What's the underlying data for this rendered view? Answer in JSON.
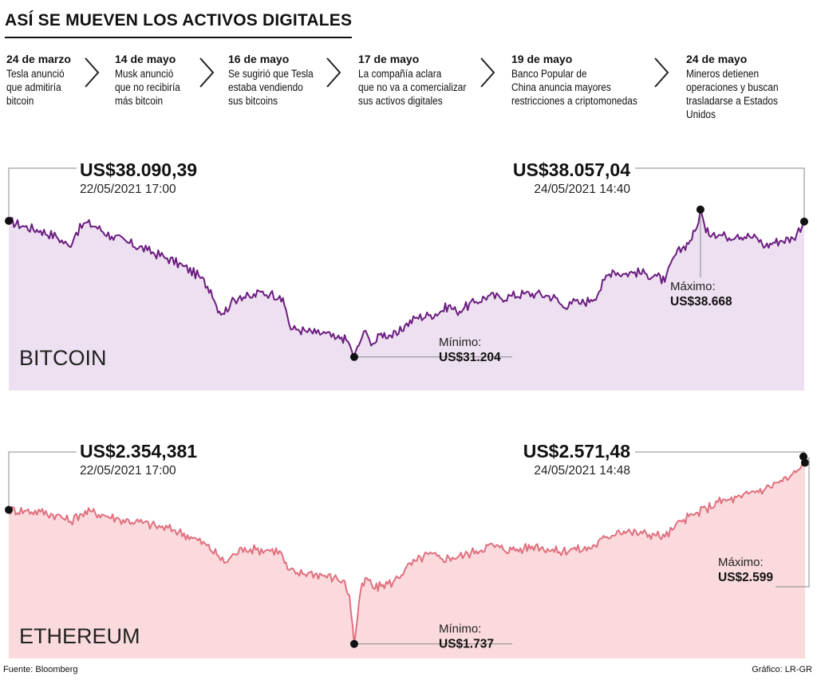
{
  "title": "ASÍ SE MUEVEN LOS ACTIVOS DIGITALES",
  "timeline": [
    {
      "date": "24 de marzo",
      "text": "Tesla anunció\nque admitiría\nbitcoin"
    },
    {
      "date": "14 de mayo",
      "text": "Musk anunció\nque no recibiría\nmás bitcoin"
    },
    {
      "date": "16 de mayo",
      "text": "Se sugirió que Tesla\nestaba vendiendo\nsus bitcoins"
    },
    {
      "date": "17 de mayo",
      "text": "La compañía aclara\nque no va a comercializar\nsus activos digitales"
    },
    {
      "date": "19 de mayo",
      "text": "Banco Popular de\nChina anuncia mayores\nrestricciones a criptomonedas"
    },
    {
      "date": "24 de mayo",
      "text": "Mineros detienen\noperaciones y buscan\ntrasladarse a Estados Unidos"
    }
  ],
  "chart_data": [
    {
      "type": "area",
      "name": "BITCOIN",
      "color": "#6b1d80",
      "fill": "#ede0f0",
      "ylim": [
        29500,
        40800
      ],
      "anchors": [
        [
          0,
          38090
        ],
        [
          20,
          37800
        ],
        [
          40,
          37600
        ],
        [
          60,
          37300
        ],
        [
          76,
          36800
        ],
        [
          85,
          37500
        ],
        [
          97,
          38000
        ],
        [
          110,
          37800
        ],
        [
          130,
          37300
        ],
        [
          150,
          37000
        ],
        [
          175,
          36600
        ],
        [
          200,
          36200
        ],
        [
          220,
          35800
        ],
        [
          240,
          35300
        ],
        [
          255,
          34600
        ],
        [
          262,
          33800
        ],
        [
          270,
          33400
        ],
        [
          280,
          33900
        ],
        [
          292,
          34300
        ],
        [
          305,
          34200
        ],
        [
          318,
          34500
        ],
        [
          330,
          34400
        ],
        [
          342,
          34300
        ],
        [
          350,
          33600
        ],
        [
          356,
          32600
        ],
        [
          365,
          32600
        ],
        [
          375,
          32500
        ],
        [
          388,
          32400
        ],
        [
          400,
          32400
        ],
        [
          412,
          32100
        ],
        [
          420,
          32200
        ],
        [
          428,
          32000
        ],
        [
          433,
          31500
        ],
        [
          436,
          31204
        ],
        [
          442,
          31800
        ],
        [
          448,
          32500
        ],
        [
          455,
          32100
        ],
        [
          462,
          31900
        ],
        [
          470,
          32400
        ],
        [
          480,
          32300
        ],
        [
          490,
          32300
        ],
        [
          500,
          32800
        ],
        [
          515,
          33200
        ],
        [
          530,
          33300
        ],
        [
          545,
          33500
        ],
        [
          555,
          33800
        ],
        [
          565,
          33500
        ],
        [
          575,
          33700
        ],
        [
          590,
          34000
        ],
        [
          605,
          34300
        ],
        [
          620,
          34200
        ],
        [
          635,
          34300
        ],
        [
          650,
          34400
        ],
        [
          665,
          34400
        ],
        [
          680,
          34300
        ],
        [
          690,
          34200
        ],
        [
          700,
          33700
        ],
        [
          708,
          34000
        ],
        [
          720,
          33900
        ],
        [
          735,
          34100
        ],
        [
          745,
          34500
        ],
        [
          752,
          35100
        ],
        [
          762,
          35600
        ],
        [
          775,
          35400
        ],
        [
          790,
          35500
        ],
        [
          805,
          35400
        ],
        [
          818,
          35300
        ],
        [
          828,
          35000
        ],
        [
          840,
          36300
        ],
        [
          850,
          36700
        ],
        [
          860,
          37100
        ],
        [
          868,
          37700
        ],
        [
          873,
          38668
        ],
        [
          880,
          37500
        ],
        [
          890,
          37500
        ],
        [
          905,
          37300
        ],
        [
          920,
          37400
        ],
        [
          935,
          37300
        ],
        [
          945,
          37200
        ],
        [
          955,
          36800
        ],
        [
          965,
          37000
        ],
        [
          975,
          37100
        ],
        [
          990,
          37200
        ],
        [
          1004,
          38057
        ]
      ],
      "value_labels": [
        {
          "value": "US$38.090,39",
          "time": "22/05/2021 17:00"
        },
        {
          "value": "US$38.057,04",
          "time": "24/05/2021 14:40"
        }
      ],
      "min": {
        "label": "Mínimo:",
        "value": "US$31.204",
        "y": 31204
      },
      "max": {
        "label": "Máximo:",
        "value": "US$38.668",
        "y": 38668
      }
    },
    {
      "type": "area",
      "name": "ETHEREUM",
      "color": "#e0707e",
      "fill": "#fadadd",
      "ylim": [
        1670,
        2690
      ],
      "anchors": [
        [
          0,
          2354
        ],
        [
          20,
          2350
        ],
        [
          40,
          2345
        ],
        [
          60,
          2330
        ],
        [
          78,
          2300
        ],
        [
          90,
          2335
        ],
        [
          105,
          2345
        ],
        [
          120,
          2330
        ],
        [
          140,
          2310
        ],
        [
          160,
          2300
        ],
        [
          185,
          2280
        ],
        [
          210,
          2260
        ],
        [
          230,
          2230
        ],
        [
          250,
          2190
        ],
        [
          265,
          2140
        ],
        [
          272,
          2110
        ],
        [
          285,
          2150
        ],
        [
          298,
          2180
        ],
        [
          312,
          2170
        ],
        [
          328,
          2170
        ],
        [
          342,
          2165
        ],
        [
          352,
          2080
        ],
        [
          362,
          2060
        ],
        [
          378,
          2065
        ],
        [
          395,
          2055
        ],
        [
          410,
          2040
        ],
        [
          422,
          2030
        ],
        [
          430,
          1960
        ],
        [
          436,
          1737
        ],
        [
          444,
          1980
        ],
        [
          452,
          2040
        ],
        [
          462,
          1990
        ],
        [
          472,
          2010
        ],
        [
          485,
          2020
        ],
        [
          500,
          2080
        ],
        [
          515,
          2120
        ],
        [
          530,
          2150
        ],
        [
          545,
          2130
        ],
        [
          560,
          2135
        ],
        [
          575,
          2145
        ],
        [
          590,
          2165
        ],
        [
          605,
          2190
        ],
        [
          620,
          2180
        ],
        [
          635,
          2170
        ],
        [
          650,
          2175
        ],
        [
          665,
          2190
        ],
        [
          680,
          2175
        ],
        [
          695,
          2160
        ],
        [
          710,
          2175
        ],
        [
          725,
          2170
        ],
        [
          740,
          2190
        ],
        [
          755,
          2230
        ],
        [
          770,
          2260
        ],
        [
          785,
          2250
        ],
        [
          800,
          2245
        ],
        [
          815,
          2240
        ],
        [
          828,
          2230
        ],
        [
          840,
          2270
        ],
        [
          852,
          2310
        ],
        [
          865,
          2330
        ],
        [
          880,
          2360
        ],
        [
          895,
          2390
        ],
        [
          910,
          2400
        ],
        [
          925,
          2410
        ],
        [
          940,
          2440
        ],
        [
          955,
          2450
        ],
        [
          970,
          2480
        ],
        [
          985,
          2500
        ],
        [
          998,
          2540
        ],
        [
          1003,
          2599
        ],
        [
          1005,
          2571
        ]
      ],
      "value_labels": [
        {
          "value": "US$2.354,381",
          "time": "22/05/2021 17:00"
        },
        {
          "value": "US$2.571,48",
          "time": "24/05/2021 14:48"
        }
      ],
      "min": {
        "label": "Mínimo:",
        "value": "US$1.737",
        "y": 1737
      },
      "max": {
        "label": "Máximo:",
        "value": "US$2.599",
        "y": 2599
      }
    }
  ],
  "footer": {
    "source": "Fuente: Bloomberg",
    "credit": "Gráfico: LR-GR"
  }
}
